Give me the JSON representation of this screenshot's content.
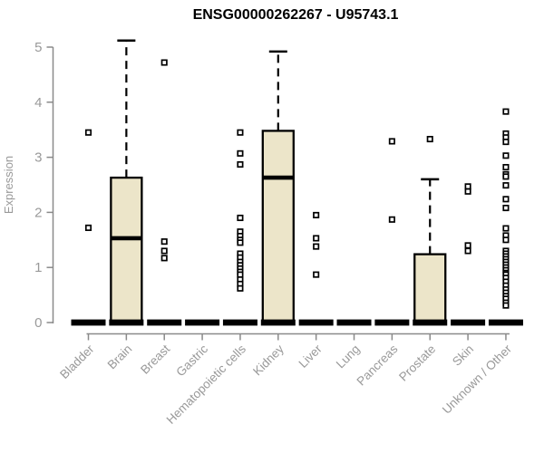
{
  "title": "ENSG00000262267 - U95743.1",
  "chart_data": {
    "type": "boxplot",
    "title": "ENSG00000262267 - U95743.1",
    "xlabel": "",
    "ylabel": "Expression",
    "ylim": [
      0,
      5
    ],
    "yticks": [
      0,
      1,
      2,
      3,
      4,
      5
    ],
    "grid": false,
    "legend": "none",
    "categories": [
      "Bladder",
      "Brain",
      "Breast",
      "Gastric",
      "Hematopoietic cells",
      "Kidney",
      "Liver",
      "Lung",
      "Pancreas",
      "Prostate",
      "Skin",
      "Unknown / Other"
    ],
    "boxes": [
      {
        "category": "Bladder",
        "low": 0,
        "q1": 0,
        "median": 0,
        "q3": 0,
        "high": 0,
        "outliers": [
          3.45,
          1.72
        ]
      },
      {
        "category": "Brain",
        "low": 0,
        "q1": 0,
        "median": 1.53,
        "q3": 2.63,
        "high": 5.12,
        "outliers": []
      },
      {
        "category": "Breast",
        "low": 0,
        "q1": 0,
        "median": 0,
        "q3": 0,
        "high": 0,
        "outliers": [
          4.72,
          1.47,
          1.3,
          1.17
        ]
      },
      {
        "category": "Gastric",
        "low": 0,
        "q1": 0,
        "median": 0,
        "q3": 0,
        "high": 0,
        "outliers": []
      },
      {
        "category": "Hematopoietic cells",
        "low": 0,
        "q1": 0,
        "median": 0,
        "q3": 0,
        "high": 0,
        "outliers": [
          3.45,
          3.07,
          2.87,
          1.9,
          1.65,
          1.57,
          1.5,
          1.45,
          1.25,
          1.18,
          1.1,
          1.04,
          0.98,
          0.92,
          0.87,
          0.78,
          0.7,
          0.62
        ]
      },
      {
        "category": "Kidney",
        "low": 0,
        "q1": 0,
        "median": 2.63,
        "q3": 3.48,
        "high": 4.92,
        "outliers": []
      },
      {
        "category": "Liver",
        "low": 0,
        "q1": 0,
        "median": 0,
        "q3": 0,
        "high": 0,
        "outliers": [
          1.95,
          1.53,
          1.38,
          0.87
        ]
      },
      {
        "category": "Lung",
        "low": 0,
        "q1": 0,
        "median": 0,
        "q3": 0,
        "high": 0,
        "outliers": []
      },
      {
        "category": "Pancreas",
        "low": 0,
        "q1": 0,
        "median": 0,
        "q3": 0,
        "high": 0,
        "outliers": [
          3.29,
          1.87
        ]
      },
      {
        "category": "Prostate",
        "low": 0,
        "q1": 0,
        "median": 0,
        "q3": 1.24,
        "high": 2.6,
        "outliers": [
          3.33
        ]
      },
      {
        "category": "Skin",
        "low": 0,
        "q1": 0,
        "median": 0,
        "q3": 0,
        "high": 0,
        "outliers": [
          2.47,
          2.38,
          1.4,
          1.3
        ]
      },
      {
        "category": "Unknown / Other",
        "low": 0,
        "q1": 0,
        "median": 0,
        "q3": 0,
        "high": 0,
        "outliers": [
          3.83,
          3.43,
          3.36,
          3.28,
          3.03,
          2.82,
          2.69,
          2.65,
          2.49,
          2.24,
          2.08,
          1.71,
          1.58,
          1.5,
          1.3,
          1.25,
          1.2,
          1.15,
          1.1,
          1.05,
          1.0,
          0.95,
          0.9,
          0.87,
          0.81,
          0.74,
          0.67,
          0.6,
          0.54,
          0.48,
          0.43,
          0.36,
          0.31
        ]
      }
    ],
    "colors": {
      "box_fill": "#ece5c9",
      "box_stroke": "#000000",
      "median": "#000000",
      "whisker": "#000000",
      "outlier_stroke": "#000000",
      "outlier_fill": "#ffffff",
      "axis_line": "#8a8a8a",
      "axis_label": "#999999",
      "title": "#000000",
      "background": "#ffffff"
    }
  }
}
